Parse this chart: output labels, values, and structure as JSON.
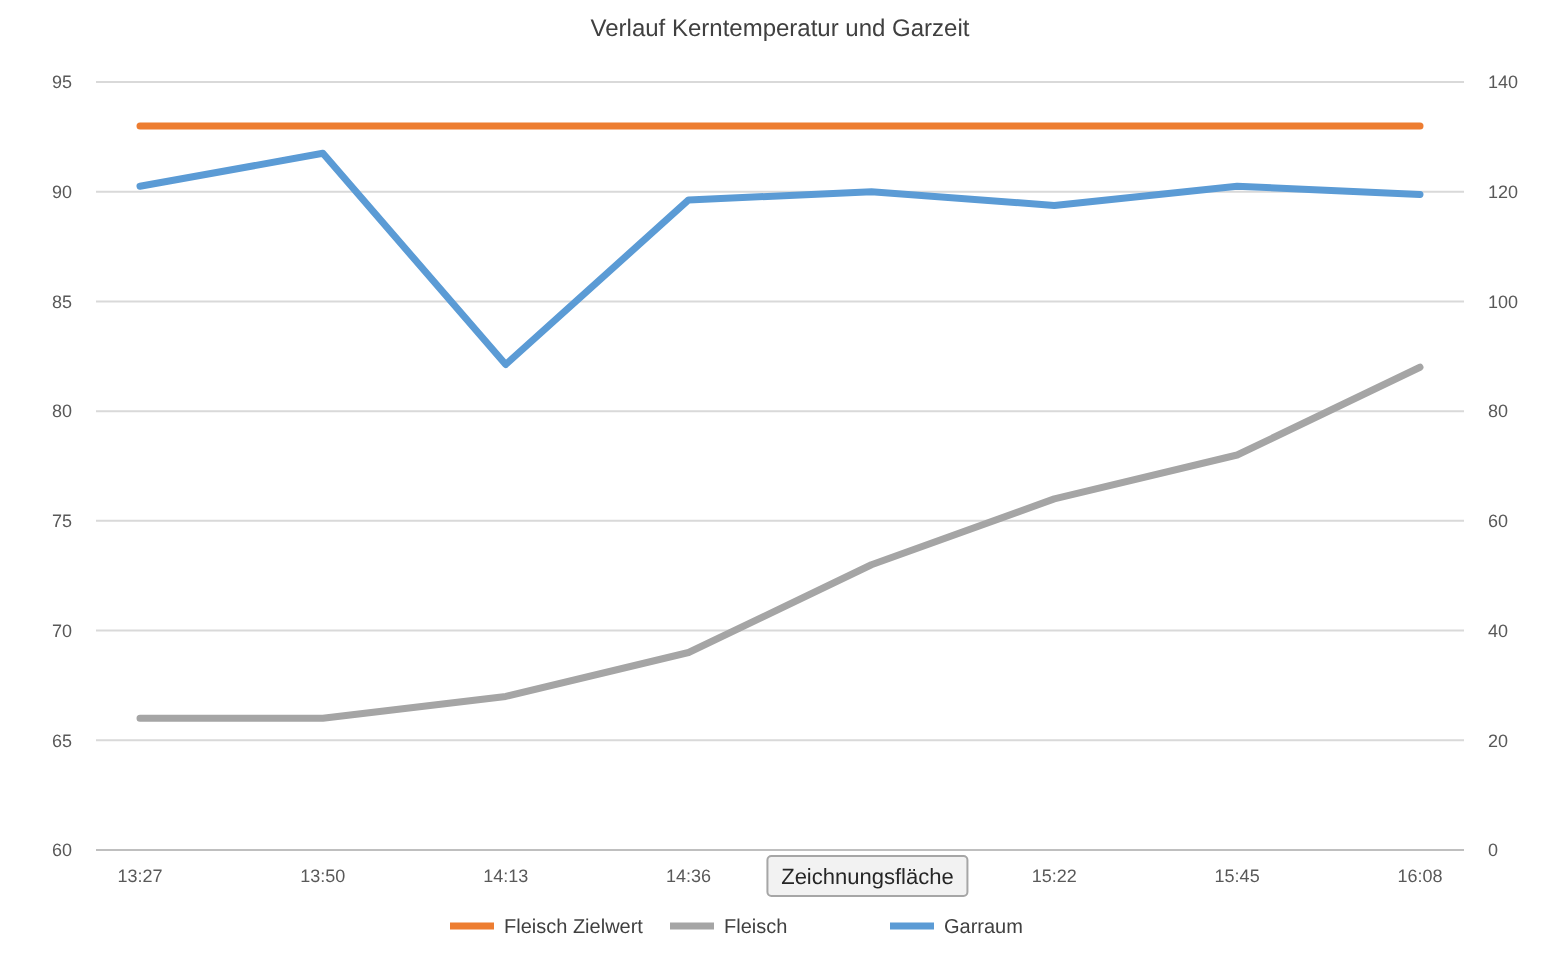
{
  "chart_data": {
    "type": "line",
    "title": "Verlauf Kerntemperatur und Garzeit",
    "categories": [
      "13:27",
      "13:50",
      "14:13",
      "14:36",
      null,
      "15:22",
      "15:45",
      "16:08"
    ],
    "series": [
      {
        "name": "Fleisch Zielwert",
        "color": "#ed7d31",
        "values": [
          93,
          93,
          93,
          93,
          93,
          93,
          93,
          93
        ]
      },
      {
        "name": "Fleisch",
        "color": "#a5a5a5",
        "values": [
          66,
          66,
          67,
          69,
          73,
          76,
          78,
          82
        ]
      },
      {
        "name": "Garraum",
        "color": "#5b9bd5",
        "axis": "y2",
        "values": [
          121,
          127,
          88.5,
          118.5,
          120,
          117.5,
          121,
          119.5
        ]
      }
    ],
    "ylim": [
      60,
      95
    ],
    "yticks": [
      60,
      65,
      70,
      75,
      80,
      85,
      90,
      95
    ],
    "y2lim": [
      0,
      140
    ],
    "y2ticks": [
      0,
      20,
      40,
      60,
      80,
      100,
      120,
      140
    ],
    "grid": "y",
    "legend": "bottom",
    "marker": "none",
    "line_style": "solid",
    "annotations": [
      "Zeichnungsfläche"
    ]
  }
}
